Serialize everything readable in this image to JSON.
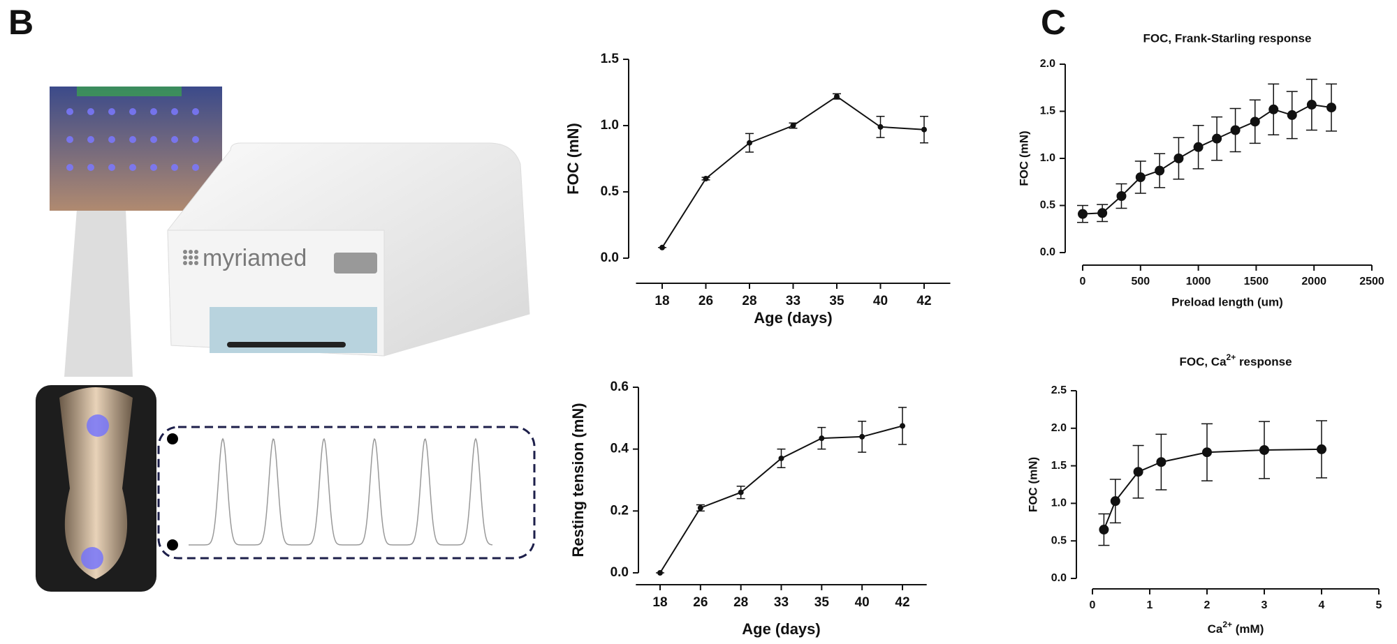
{
  "panel_labels": [
    "B",
    "C"
  ],
  "device_brand": "myriamed",
  "chart_data": [
    {
      "type": "line",
      "xlabel": "Age (days)",
      "ylabel": "FOC (mN)",
      "categories": [
        "18",
        "26",
        "28",
        "33",
        "35",
        "40",
        "42"
      ],
      "values": [
        0.08,
        0.6,
        0.87,
        1.0,
        1.22,
        0.99,
        0.97
      ],
      "errors": [
        0,
        0.01,
        0.07,
        0.02,
        0.02,
        0.08,
        0.1
      ],
      "color": "#111111",
      "ylim": [
        0,
        1.5
      ],
      "yticks": [
        {
          "value": 0,
          "label": "0.0"
        },
        0.5,
        {
          "value": 1,
          "label": "1.0"
        },
        1.5
      ]
    },
    {
      "type": "line",
      "xlabel": "Age (days)",
      "ylabel": "Resting tension (mN)",
      "categories": [
        "18",
        "26",
        "28",
        "33",
        "35",
        "40",
        "42"
      ],
      "values": [
        0.0,
        0.21,
        0.26,
        0.37,
        0.435,
        0.44,
        0.475
      ],
      "errors": [
        0,
        0.01,
        0.02,
        0.03,
        0.035,
        0.05,
        0.06
      ],
      "color": "#111111",
      "ylim": [
        0,
        0.6
      ],
      "yticks": [
        {
          "value": 0,
          "label": "0.0"
        },
        0.2,
        0.4,
        0.6
      ]
    },
    {
      "type": "line",
      "title": "FOC, Frank-Starling response",
      "xlabel": "Preload length (um)",
      "ylabel": "FOC (mN)",
      "x": [
        0,
        170,
        335,
        500,
        665,
        830,
        1000,
        1160,
        1320,
        1490,
        1650,
        1810,
        1980,
        2150
      ],
      "values": [
        0.41,
        0.42,
        0.6,
        0.8,
        0.87,
        1.0,
        1.12,
        1.21,
        1.3,
        1.39,
        1.52,
        1.46,
        1.57,
        1.54
      ],
      "errors": [
        0.09,
        0.09,
        0.13,
        0.17,
        0.18,
        0.22,
        0.23,
        0.23,
        0.23,
        0.23,
        0.27,
        0.25,
        0.27,
        0.25
      ],
      "color": "#111111",
      "xlim": [
        0,
        2500
      ],
      "xticks": [
        0,
        500,
        1000,
        1500,
        2000,
        2500
      ],
      "ylim": [
        0,
        2
      ],
      "yticks": [
        {
          "value": 0,
          "label": "0.0"
        },
        0.5,
        {
          "value": 1,
          "label": "1.0"
        },
        1.5,
        {
          "value": 2,
          "label": "2.0"
        }
      ]
    },
    {
      "type": "line",
      "title": [
        "FOC, Ca",
        "2+",
        " response"
      ],
      "xlabel": [
        "Ca",
        "2+",
        " (mM)"
      ],
      "ylabel": "FOC (mN)",
      "x": [
        0.2,
        0.4,
        0.8,
        1.2,
        2,
        3,
        4
      ],
      "values": [
        0.65,
        1.03,
        1.42,
        1.55,
        1.68,
        1.71,
        1.72
      ],
      "errors": [
        0.21,
        0.29,
        0.35,
        0.37,
        0.38,
        0.38,
        0.38
      ],
      "color": "#111111",
      "xlim": [
        0,
        5
      ],
      "xticks": [
        0,
        1,
        2,
        3,
        4,
        5
      ],
      "ylim": [
        0,
        2.5
      ],
      "yticks": [
        {
          "value": 0,
          "label": "0.0"
        },
        0.5,
        {
          "value": 1,
          "label": "1.0"
        },
        1.5,
        {
          "value": 2,
          "label": "2.0"
        },
        2.5
      ]
    }
  ]
}
